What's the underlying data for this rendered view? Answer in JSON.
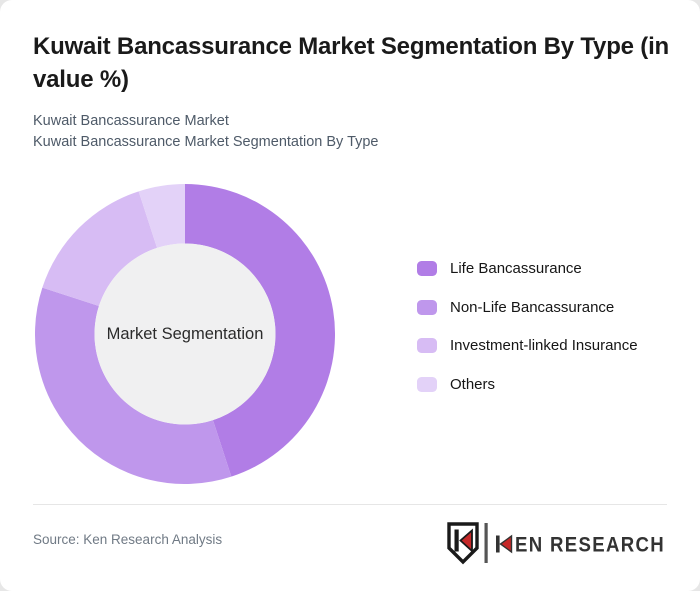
{
  "header": {
    "title": "Kuwait Bancassurance Market Segmentation By Type (in value %)",
    "subtitles": [
      "Kuwait Bancassurance Market",
      "Kuwait Bancassurance Market Segmentation By Type"
    ]
  },
  "chart_data": {
    "type": "pie",
    "donut": true,
    "title": "Kuwait Bancassurance Market Segmentation By Type (in value %)",
    "center_label": "Market Segmentation",
    "categories": [
      "Life Bancassurance",
      "Non-Life Bancassurance",
      "Investment-linked Insurance",
      "Others"
    ],
    "values": [
      45,
      35,
      15,
      5
    ],
    "units": "percent (value %)",
    "colors": [
      "#b17de6",
      "#bf97ec",
      "#d7bcf4",
      "#e3d2f8"
    ],
    "legend_position": "right",
    "start_angle_deg": 0,
    "direction": "clockwise"
  },
  "footer": {
    "source": "Source: Ken Research Analysis",
    "brand": {
      "name": "KEN RESEARCH",
      "text_after_k": "EN RESEARCH",
      "accent_color": "#c62828",
      "text_color": "#333333"
    }
  }
}
